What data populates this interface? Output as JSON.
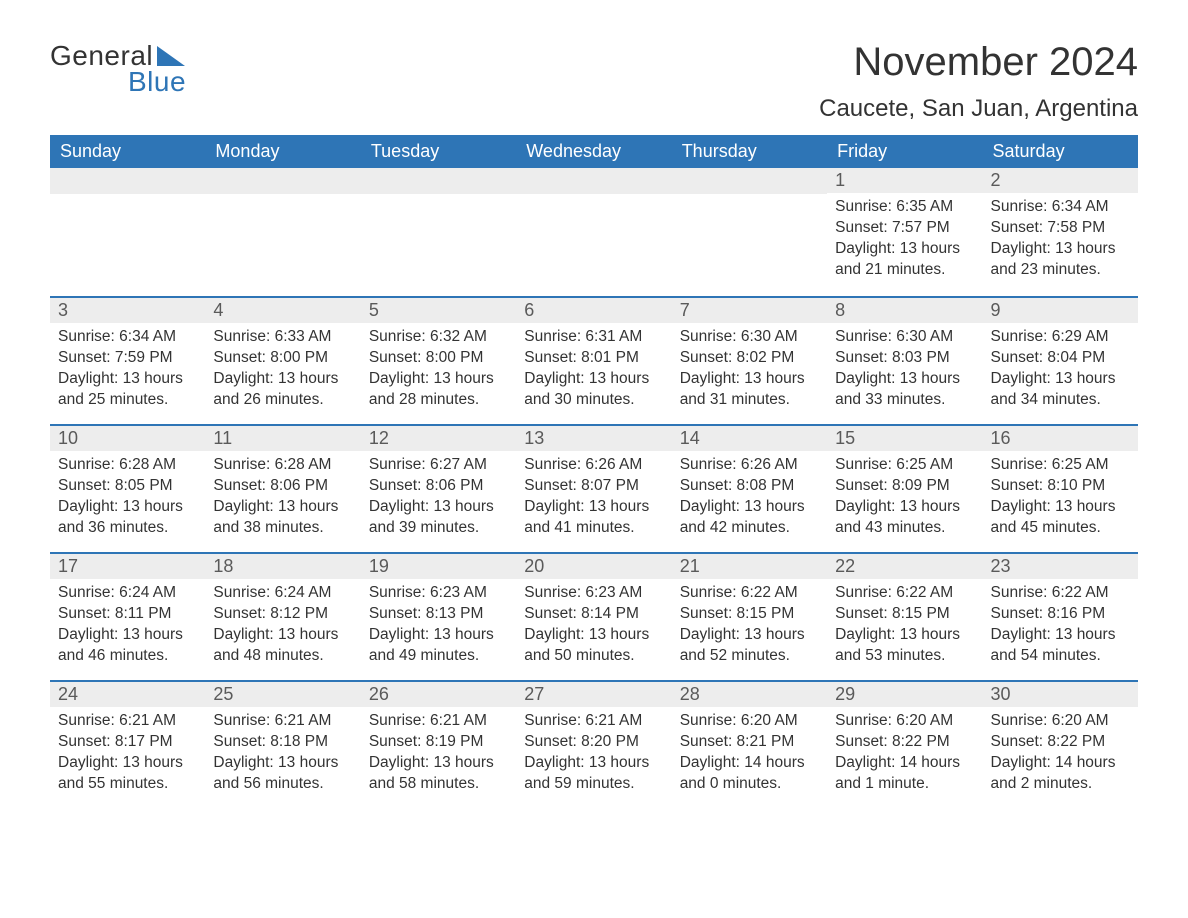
{
  "brand": {
    "line1": "General",
    "line2": "Blue"
  },
  "title": "November 2024",
  "location": "Caucete, San Juan, Argentina",
  "colors": {
    "header_bg": "#2e75b6",
    "header_text": "#ffffff",
    "daynum_bg": "#ededed",
    "daynum_text": "#5a5a5a",
    "body_text": "#333333",
    "row_border": "#2e75b6",
    "page_bg": "#ffffff"
  },
  "typography": {
    "title_fontsize": 40,
    "location_fontsize": 24,
    "weekday_fontsize": 18,
    "daynum_fontsize": 18,
    "body_fontsize": 15.5,
    "font_family": "Arial"
  },
  "weekdays": [
    "Sunday",
    "Monday",
    "Tuesday",
    "Wednesday",
    "Thursday",
    "Friday",
    "Saturday"
  ],
  "labels": {
    "sunrise": "Sunrise:",
    "sunset": "Sunset:",
    "daylight": "Daylight:"
  },
  "weeks": [
    [
      {
        "blank": true
      },
      {
        "blank": true
      },
      {
        "blank": true
      },
      {
        "blank": true
      },
      {
        "blank": true
      },
      {
        "day": "1",
        "sunrise": "6:35 AM",
        "sunset": "7:57 PM",
        "daylight": "13 hours and 21 minutes."
      },
      {
        "day": "2",
        "sunrise": "6:34 AM",
        "sunset": "7:58 PM",
        "daylight": "13 hours and 23 minutes."
      }
    ],
    [
      {
        "day": "3",
        "sunrise": "6:34 AM",
        "sunset": "7:59 PM",
        "daylight": "13 hours and 25 minutes."
      },
      {
        "day": "4",
        "sunrise": "6:33 AM",
        "sunset": "8:00 PM",
        "daylight": "13 hours and 26 minutes."
      },
      {
        "day": "5",
        "sunrise": "6:32 AM",
        "sunset": "8:00 PM",
        "daylight": "13 hours and 28 minutes."
      },
      {
        "day": "6",
        "sunrise": "6:31 AM",
        "sunset": "8:01 PM",
        "daylight": "13 hours and 30 minutes."
      },
      {
        "day": "7",
        "sunrise": "6:30 AM",
        "sunset": "8:02 PM",
        "daylight": "13 hours and 31 minutes."
      },
      {
        "day": "8",
        "sunrise": "6:30 AM",
        "sunset": "8:03 PM",
        "daylight": "13 hours and 33 minutes."
      },
      {
        "day": "9",
        "sunrise": "6:29 AM",
        "sunset": "8:04 PM",
        "daylight": "13 hours and 34 minutes."
      }
    ],
    [
      {
        "day": "10",
        "sunrise": "6:28 AM",
        "sunset": "8:05 PM",
        "daylight": "13 hours and 36 minutes."
      },
      {
        "day": "11",
        "sunrise": "6:28 AM",
        "sunset": "8:06 PM",
        "daylight": "13 hours and 38 minutes."
      },
      {
        "day": "12",
        "sunrise": "6:27 AM",
        "sunset": "8:06 PM",
        "daylight": "13 hours and 39 minutes."
      },
      {
        "day": "13",
        "sunrise": "6:26 AM",
        "sunset": "8:07 PM",
        "daylight": "13 hours and 41 minutes."
      },
      {
        "day": "14",
        "sunrise": "6:26 AM",
        "sunset": "8:08 PM",
        "daylight": "13 hours and 42 minutes."
      },
      {
        "day": "15",
        "sunrise": "6:25 AM",
        "sunset": "8:09 PM",
        "daylight": "13 hours and 43 minutes."
      },
      {
        "day": "16",
        "sunrise": "6:25 AM",
        "sunset": "8:10 PM",
        "daylight": "13 hours and 45 minutes."
      }
    ],
    [
      {
        "day": "17",
        "sunrise": "6:24 AM",
        "sunset": "8:11 PM",
        "daylight": "13 hours and 46 minutes."
      },
      {
        "day": "18",
        "sunrise": "6:24 AM",
        "sunset": "8:12 PM",
        "daylight": "13 hours and 48 minutes."
      },
      {
        "day": "19",
        "sunrise": "6:23 AM",
        "sunset": "8:13 PM",
        "daylight": "13 hours and 49 minutes."
      },
      {
        "day": "20",
        "sunrise": "6:23 AM",
        "sunset": "8:14 PM",
        "daylight": "13 hours and 50 minutes."
      },
      {
        "day": "21",
        "sunrise": "6:22 AM",
        "sunset": "8:15 PM",
        "daylight": "13 hours and 52 minutes."
      },
      {
        "day": "22",
        "sunrise": "6:22 AM",
        "sunset": "8:15 PM",
        "daylight": "13 hours and 53 minutes."
      },
      {
        "day": "23",
        "sunrise": "6:22 AM",
        "sunset": "8:16 PM",
        "daylight": "13 hours and 54 minutes."
      }
    ],
    [
      {
        "day": "24",
        "sunrise": "6:21 AM",
        "sunset": "8:17 PM",
        "daylight": "13 hours and 55 minutes."
      },
      {
        "day": "25",
        "sunrise": "6:21 AM",
        "sunset": "8:18 PM",
        "daylight": "13 hours and 56 minutes."
      },
      {
        "day": "26",
        "sunrise": "6:21 AM",
        "sunset": "8:19 PM",
        "daylight": "13 hours and 58 minutes."
      },
      {
        "day": "27",
        "sunrise": "6:21 AM",
        "sunset": "8:20 PM",
        "daylight": "13 hours and 59 minutes."
      },
      {
        "day": "28",
        "sunrise": "6:20 AM",
        "sunset": "8:21 PM",
        "daylight": "14 hours and 0 minutes."
      },
      {
        "day": "29",
        "sunrise": "6:20 AM",
        "sunset": "8:22 PM",
        "daylight": "14 hours and 1 minute."
      },
      {
        "day": "30",
        "sunrise": "6:20 AM",
        "sunset": "8:22 PM",
        "daylight": "14 hours and 2 minutes."
      }
    ]
  ]
}
